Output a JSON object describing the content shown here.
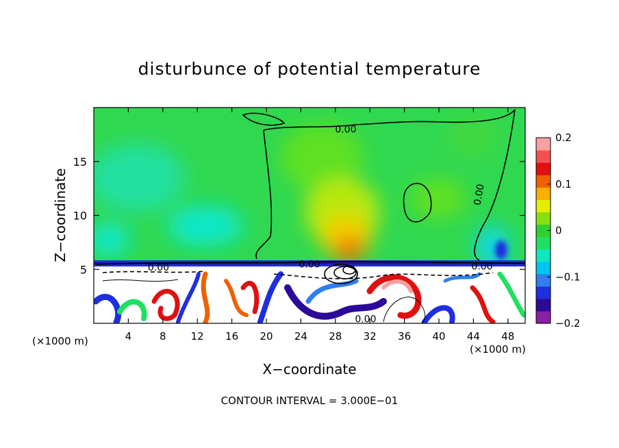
{
  "chart_data": {
    "type": "heatmap",
    "title": "disturbunce of potential temperature",
    "xlabel": "X−coordinate",
    "ylabel": "Z−coordinate",
    "x_unit": "(×1000 m)",
    "footer": "CONTOUR INTERVAL = 3.000E−01",
    "xlim": [
      0,
      50
    ],
    "ylim": [
      0,
      20
    ],
    "x_ticks": [
      4,
      8,
      12,
      16,
      20,
      24,
      28,
      32,
      36,
      40,
      44,
      48
    ],
    "y_ticks": [
      5,
      10,
      15
    ],
    "contour_labels": [
      {
        "text": "0.00",
        "x": 29.2,
        "z": 18.0
      },
      {
        "text": "0.00",
        "x": 45.0,
        "z": 12.2
      },
      {
        "text": "0.00",
        "x": 7.5,
        "z": 5.2
      },
      {
        "text": "0.00",
        "x": 25.0,
        "z": 5.5
      },
      {
        "text": "0.00",
        "x": 45.0,
        "z": 5.3
      },
      {
        "text": "0.00",
        "x": 31.5,
        "z": 0.4
      }
    ],
    "colorbar": {
      "min": -0.2,
      "max": 0.2,
      "tick_labels": [
        "0.2",
        "0.1",
        "0",
        "−0.1",
        "−0.2"
      ],
      "tick_values": [
        0.2,
        0.1,
        0,
        -0.1,
        -0.2
      ],
      "colors": [
        "#8b1fa6",
        "#2b0a9a",
        "#1f2fe0",
        "#2f7ff0",
        "#00c4f0",
        "#10e6c0",
        "#20e060",
        "#30d030",
        "#86e010",
        "#e0f000",
        "#f8b000",
        "#f06000",
        "#e01010",
        "#f45050",
        "#f8a0a0"
      ]
    }
  }
}
